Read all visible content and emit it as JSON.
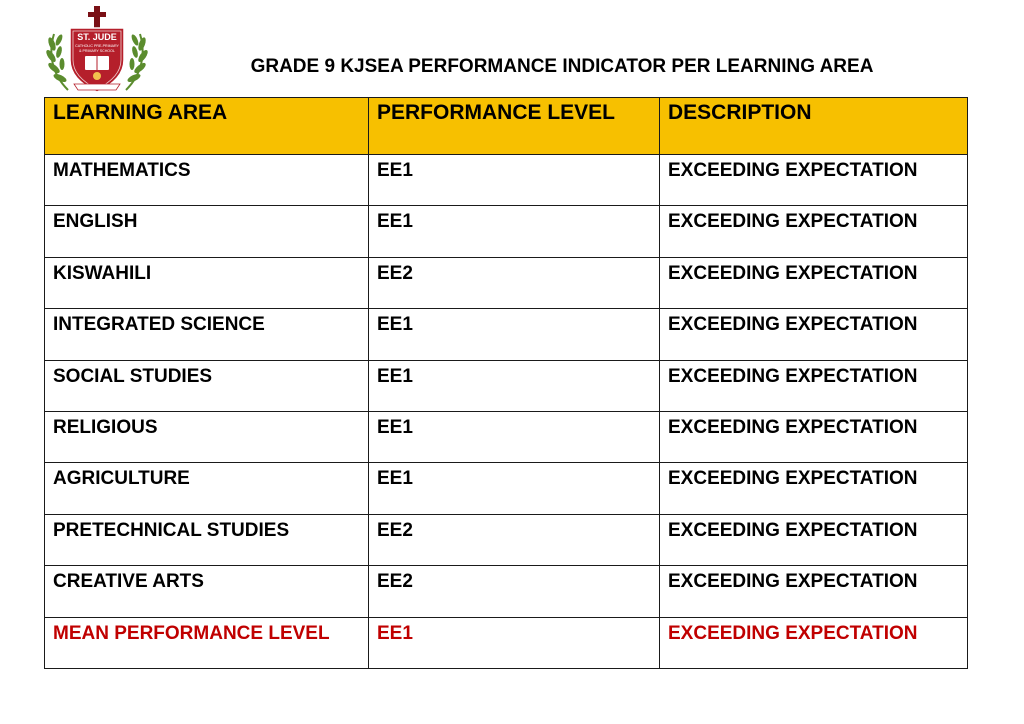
{
  "logo": {
    "name": "ST. JUDE",
    "subtitle_line1": "CATHOLIC PRE-PRIMARY",
    "subtitle_line2": "& PRIMARY SCHOOL",
    "colors": {
      "shield": "#b51f2b",
      "laurel": "#5b8c2e",
      "cross": "#7a1016"
    }
  },
  "title": "GRADE 9 KJSEA PERFORMANCE INDICATOR PER LEARNING AREA",
  "table": {
    "headers": [
      "LEARNING AREA",
      "PERFORMANCE LEVEL",
      "DESCRIPTION"
    ],
    "rows": [
      [
        "MATHEMATICS",
        "EE1",
        "EXCEEDING EXPECTATION"
      ],
      [
        "ENGLISH",
        "EE1",
        "EXCEEDING EXPECTATION"
      ],
      [
        "KISWAHILI",
        "EE2",
        "EXCEEDING EXPECTATION"
      ],
      [
        "INTEGRATED SCIENCE",
        "EE1",
        "EXCEEDING EXPECTATION"
      ],
      [
        "SOCIAL STUDIES",
        "EE1",
        "EXCEEDING EXPECTATION"
      ],
      [
        "RELIGIOUS",
        "EE1",
        "EXCEEDING EXPECTATION"
      ],
      [
        "AGRICULTURE",
        "EE1",
        "EXCEEDING EXPECTATION"
      ],
      [
        "PRETECHNICAL STUDIES",
        "EE2",
        "EXCEEDING EXPECTATION"
      ],
      [
        "CREATIVE ARTS",
        "EE2",
        "EXCEEDING EXPECTATION"
      ]
    ],
    "mean_row": [
      "MEAN PERFORMANCE LEVEL",
      "EE1",
      "EXCEEDING EXPECTATION"
    ],
    "colors": {
      "header_bg": "#f7c000",
      "mean_text": "#c00000",
      "border": "#1a1a1a"
    }
  }
}
